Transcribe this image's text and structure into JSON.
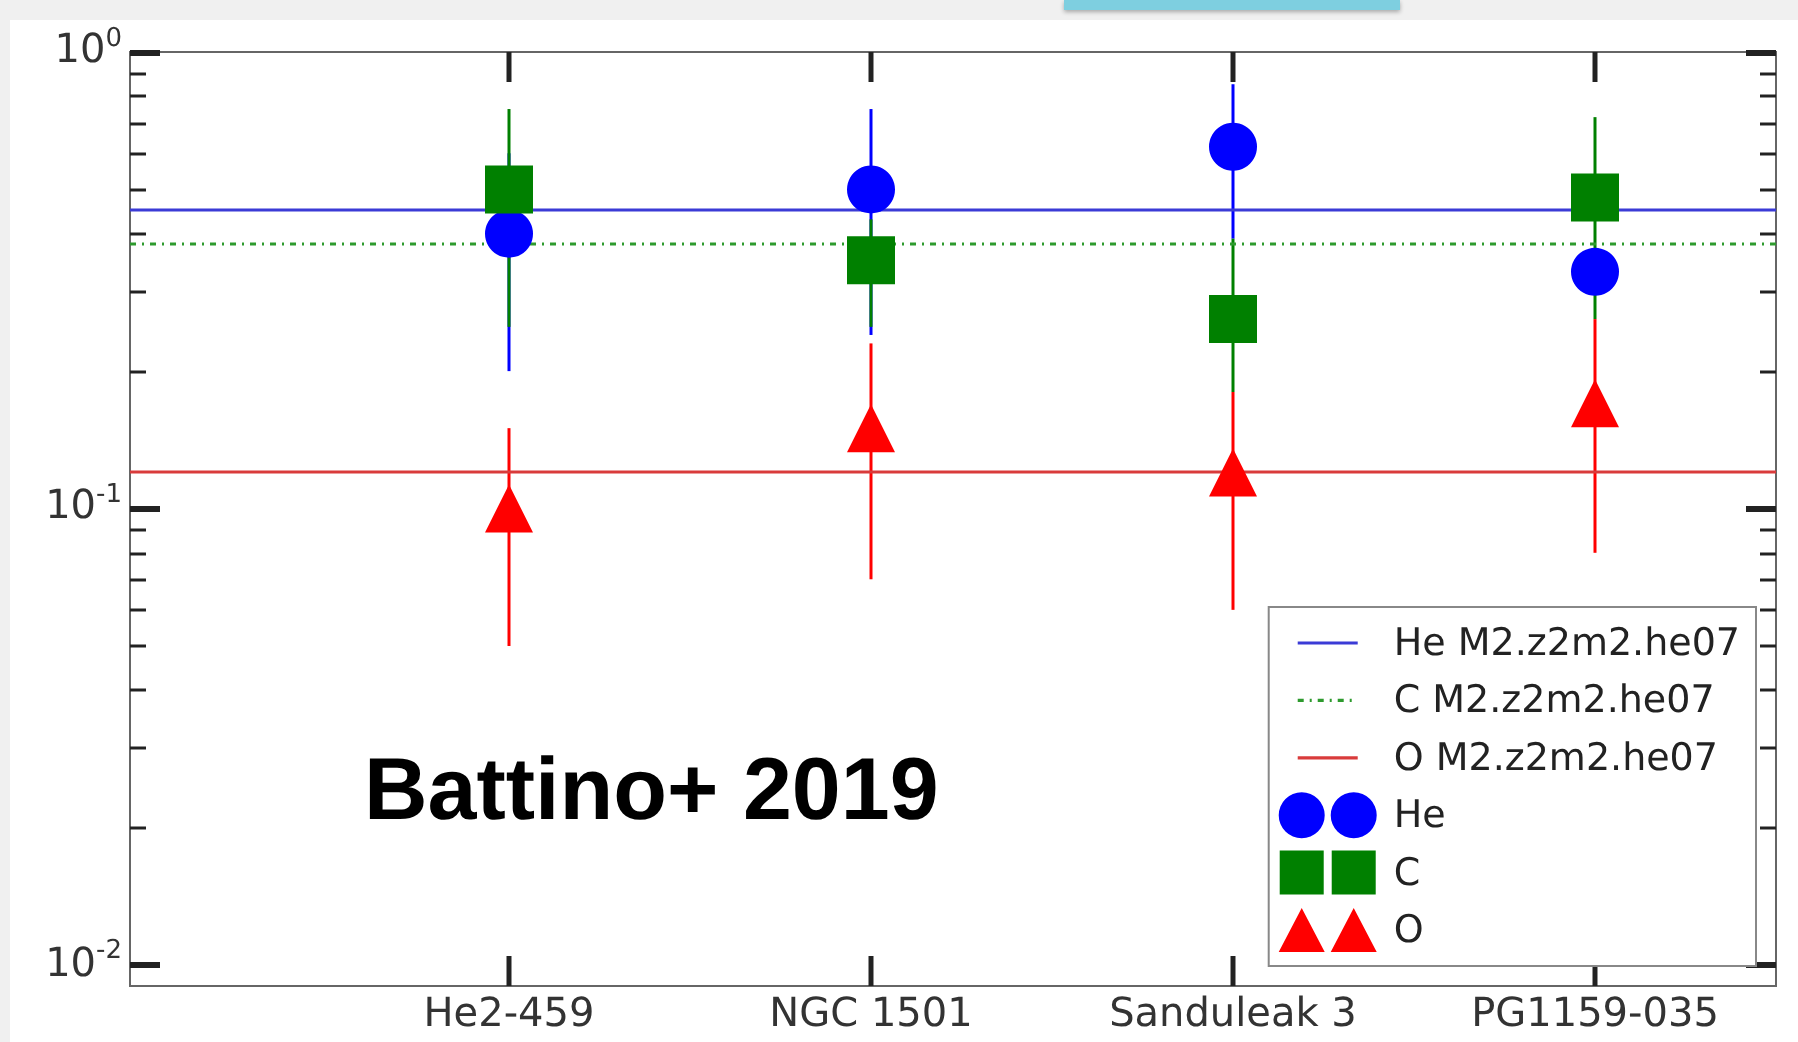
{
  "chart_data": {
    "type": "scatter",
    "log": "y",
    "grid": false,
    "legend": "bottom right",
    "categories": [
      "He2-459",
      "NGC 1501",
      "Sanduleak 3",
      "PG1159-035"
    ],
    "series": [
      {
        "name": "He",
        "color": "#0000ff",
        "marker": "circle",
        "values": [
          0.4,
          0.5,
          0.62,
          0.33
        ],
        "errors": [
          [
            0.2,
            0.6
          ],
          [
            0.24,
            0.75
          ],
          [
            0.39,
            0.85
          ],
          null
        ]
      },
      {
        "name": "C",
        "color": "#008000",
        "marker": "square",
        "values": [
          0.5,
          0.35,
          0.26,
          0.48
        ],
        "errors": [
          [
            0.25,
            0.75
          ],
          [
            0.25,
            0.43
          ],
          [
            0.18,
            0.39
          ],
          [
            0.26,
            0.72
          ]
        ]
      },
      {
        "name": "O",
        "color": "#ff0000",
        "marker": "triangle",
        "values": [
          0.1,
          0.15,
          0.12,
          0.17
        ],
        "errors": [
          [
            0.05,
            0.15
          ],
          [
            0.07,
            0.23
          ],
          [
            0.06,
            0.18
          ],
          [
            0.08,
            0.26
          ]
        ]
      }
    ],
    "ylim": [
      0.009,
      1
    ],
    "yticks": [
      {
        "value": 0.01,
        "label": "10$^{-2}$"
      },
      {
        "value": 0.02,
        "label": null
      },
      {
        "value": 0.03,
        "label": null
      },
      {
        "value": 0.04,
        "label": null
      },
      {
        "value": 0.05,
        "label": null
      },
      {
        "value": 0.06,
        "label": null
      },
      {
        "value": 0.07,
        "label": null
      },
      {
        "value": 0.08,
        "label": null
      },
      {
        "value": 0.09,
        "label": null
      },
      {
        "value": 0.1,
        "label": "10$^{-1}$"
      },
      {
        "value": 0.2,
        "label": null
      },
      {
        "value": 0.3,
        "label": null
      },
      {
        "value": 0.4,
        "label": null
      },
      {
        "value": 0.5,
        "label": null
      },
      {
        "value": 0.6,
        "label": null
      },
      {
        "value": 0.7,
        "label": null
      },
      {
        "value": 0.8,
        "label": null
      },
      {
        "value": 0.9,
        "label": null
      },
      {
        "value": 1,
        "label": "10$^{0}$"
      }
    ],
    "ref_lines": [
      {
        "axis": "y",
        "value": 0.45,
        "label": "He M2.z2m2.he07",
        "color": "#3b3bd6",
        "line_style": "solid"
      },
      {
        "axis": "y",
        "value": 0.38,
        "label": "C M2.z2m2.he07",
        "color": "#2e9a2e",
        "line_style": "dotted"
      },
      {
        "axis": "y",
        "value": 0.12,
        "label": "O M2.z2m2.he07",
        "color": "#d93b3b",
        "line_style": "solid"
      }
    ],
    "annotations": [
      "Battino+ 2019"
    ]
  }
}
